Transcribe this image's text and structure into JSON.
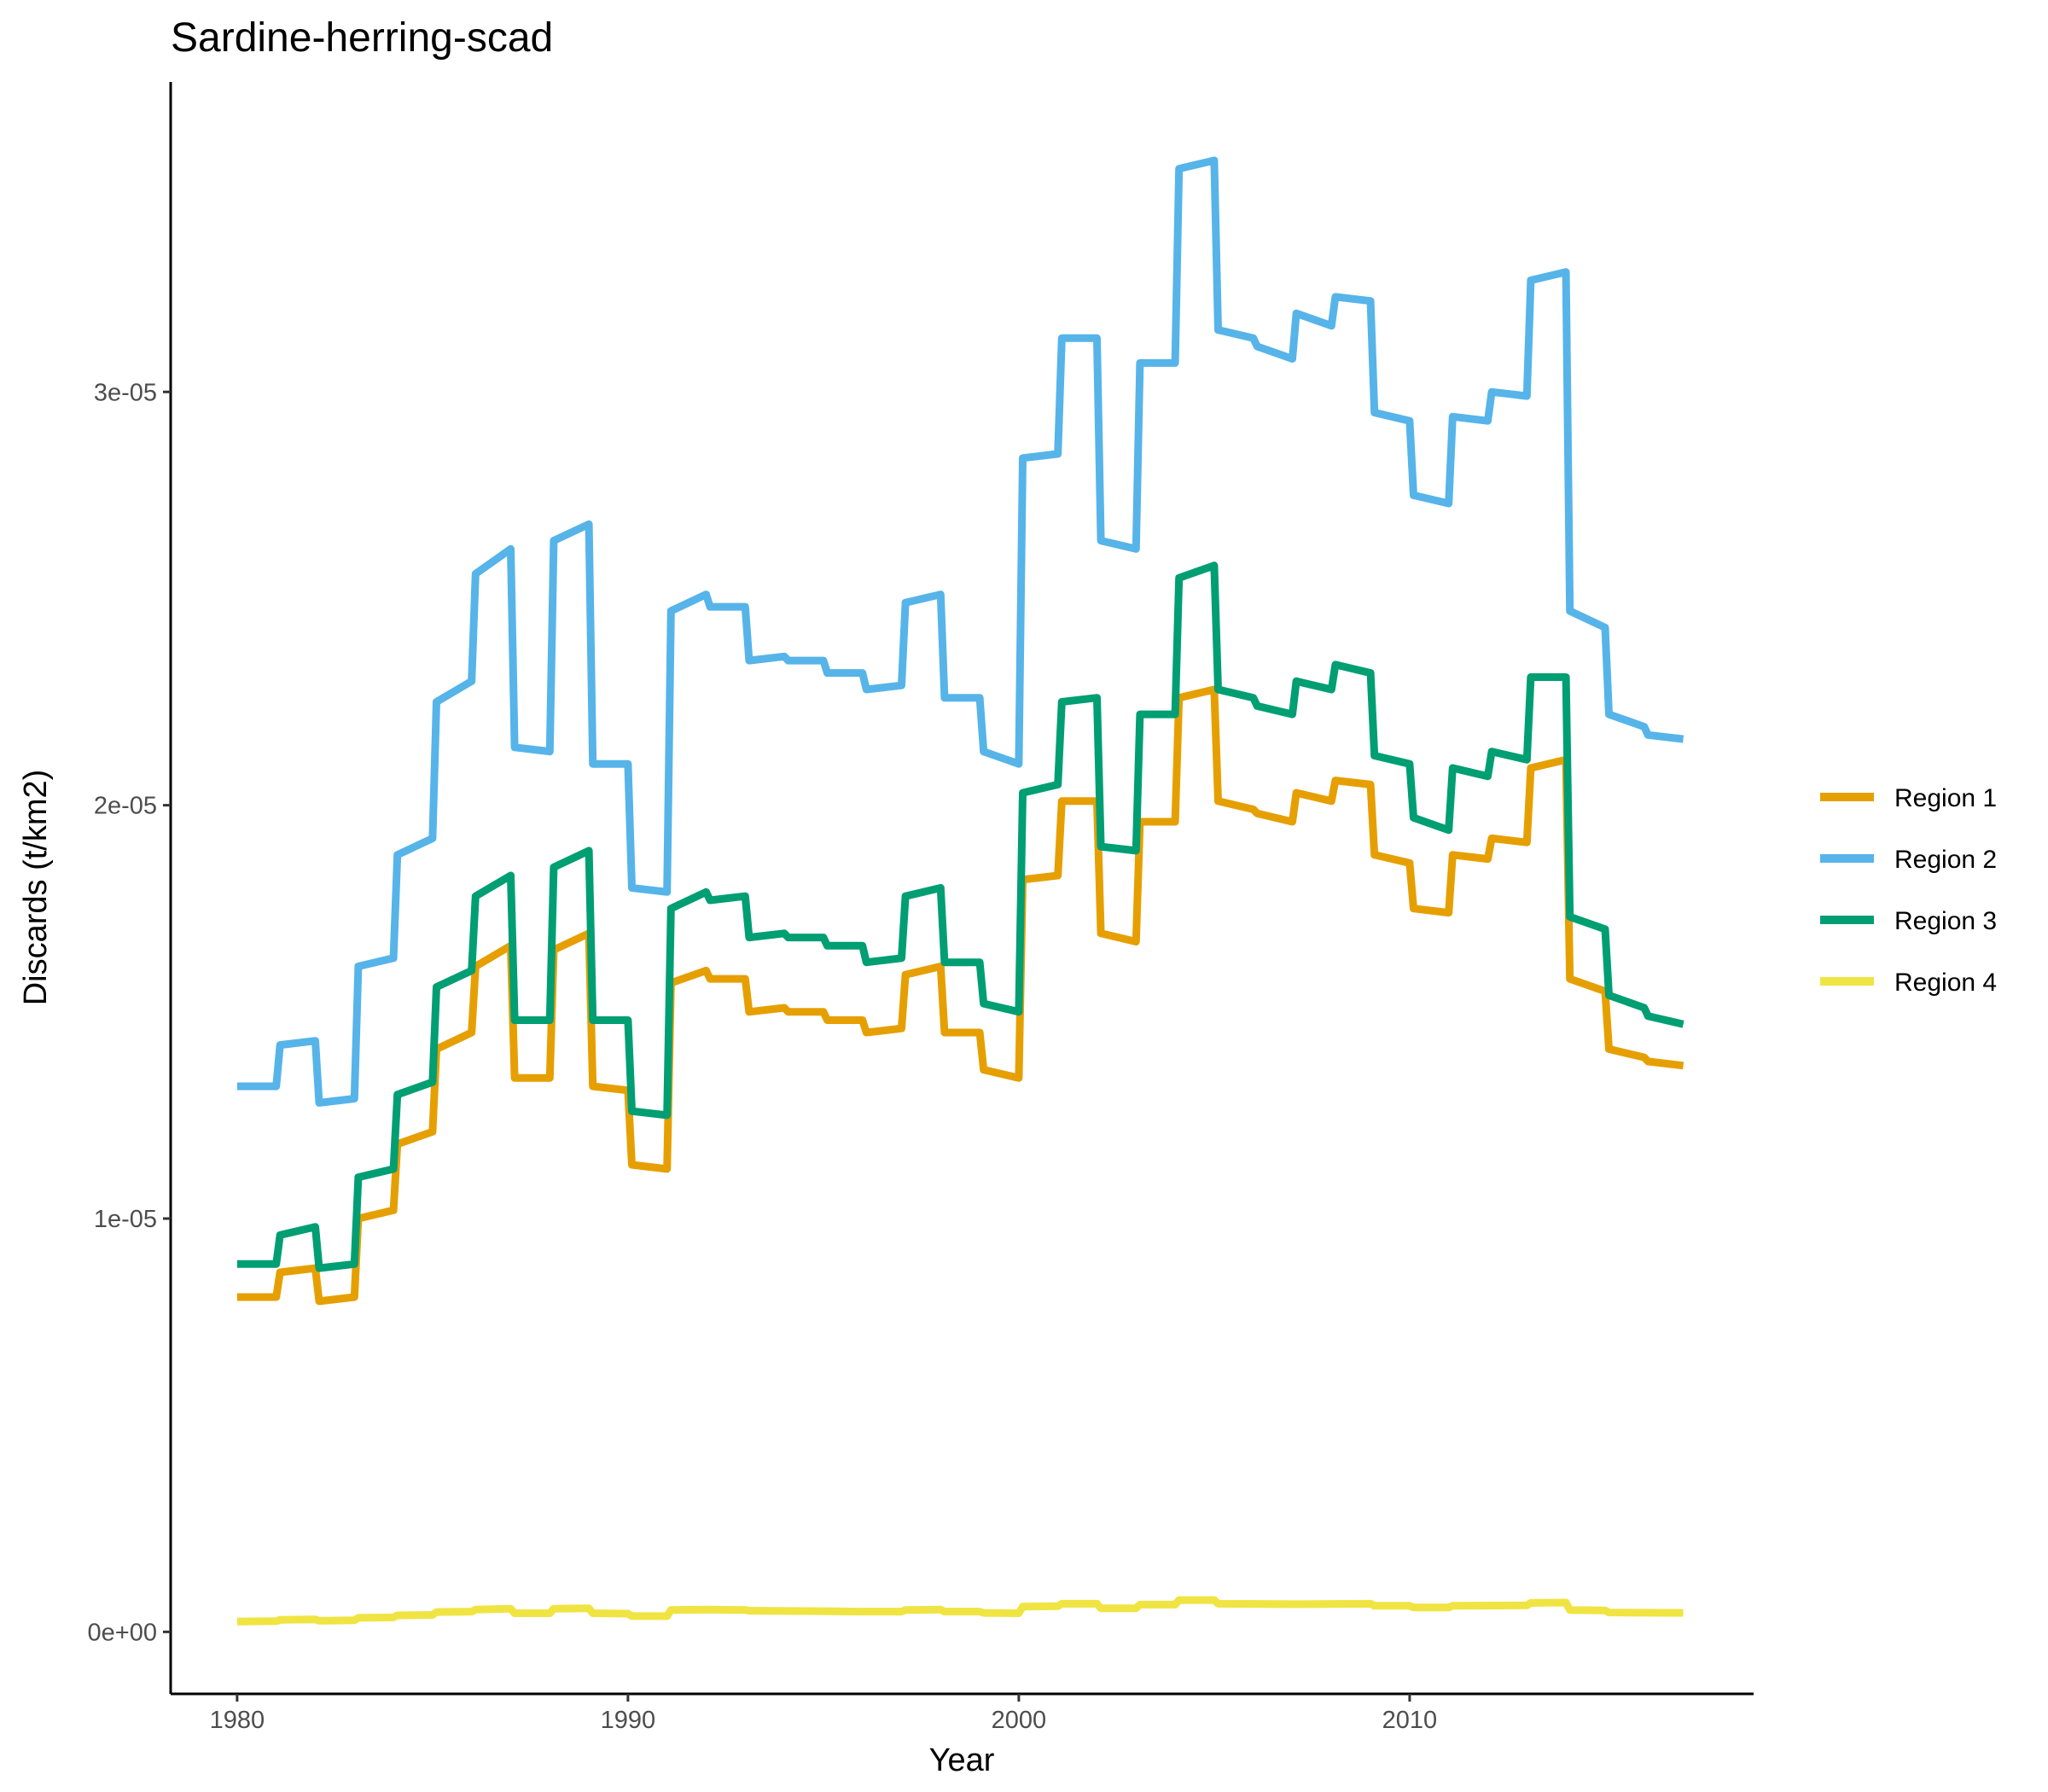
{
  "chart_data": {
    "type": "line",
    "title": "Sardine-herring-scad",
    "xlabel": "Year",
    "ylabel": "Discards (t/km2)",
    "xlim": [
      1978.3,
      2018.8
    ],
    "ylim": [
      -1.5e-06,
      3.75e-05
    ],
    "x_ticks": [
      1980,
      1990,
      2000,
      2010
    ],
    "x_tick_labels": [
      "1980",
      "1990",
      "2000",
      "2010"
    ],
    "y_ticks": [
      0,
      1e-05,
      2e-05,
      3e-05
    ],
    "y_tick_labels": [
      "0e+00",
      "1e-05",
      "2e-05",
      "3e-05"
    ],
    "grid": false,
    "legend_position": "right",
    "series": [
      {
        "name": "Region 1",
        "color": "#E69F00",
        "points": [
          [
            1980.0,
            8.1e-06
          ],
          [
            1981.0,
            8.1e-06
          ],
          [
            1981.1,
            8.7e-06
          ],
          [
            1982.0,
            8.8e-06
          ],
          [
            1982.1,
            8e-06
          ],
          [
            1983.0,
            8.1e-06
          ],
          [
            1983.1,
            1e-05
          ],
          [
            1984.0,
            1.02e-05
          ],
          [
            1984.1,
            1.18e-05
          ],
          [
            1985.0,
            1.21e-05
          ],
          [
            1985.1,
            1.41e-05
          ],
          [
            1986.0,
            1.45e-05
          ],
          [
            1986.1,
            1.61e-05
          ],
          [
            1987.0,
            1.66e-05
          ],
          [
            1987.1,
            1.34e-05
          ],
          [
            1988.0,
            1.34e-05
          ],
          [
            1988.1,
            1.65e-05
          ],
          [
            1989.0,
            1.69e-05
          ],
          [
            1989.1,
            1.32e-05
          ],
          [
            1990.0,
            1.31e-05
          ],
          [
            1990.1,
            1.13e-05
          ],
          [
            1991.0,
            1.12e-05
          ],
          [
            1991.1,
            1.57e-05
          ],
          [
            1992.0,
            1.6e-05
          ],
          [
            1992.1,
            1.58e-05
          ],
          [
            1993.0,
            1.58e-05
          ],
          [
            1993.1,
            1.5e-05
          ],
          [
            1994.0,
            1.51e-05
          ],
          [
            1994.1,
            1.5e-05
          ],
          [
            1995.0,
            1.5e-05
          ],
          [
            1995.1,
            1.48e-05
          ],
          [
            1996.0,
            1.48e-05
          ],
          [
            1996.1,
            1.45e-05
          ],
          [
            1997.0,
            1.46e-05
          ],
          [
            1997.1,
            1.59e-05
          ],
          [
            1998.0,
            1.61e-05
          ],
          [
            1998.1,
            1.45e-05
          ],
          [
            1999.0,
            1.45e-05
          ],
          [
            1999.1,
            1.36e-05
          ],
          [
            2000.0,
            1.34e-05
          ],
          [
            2000.1,
            1.82e-05
          ],
          [
            2001.0,
            1.83e-05
          ],
          [
            2001.1,
            2.01e-05
          ],
          [
            2002.0,
            2.01e-05
          ],
          [
            2002.1,
            1.69e-05
          ],
          [
            2003.0,
            1.67e-05
          ],
          [
            2003.1,
            1.96e-05
          ],
          [
            2004.0,
            1.96e-05
          ],
          [
            2004.1,
            2.26e-05
          ],
          [
            2005.0,
            2.28e-05
          ],
          [
            2005.1,
            2.01e-05
          ],
          [
            2006.0,
            1.99e-05
          ],
          [
            2006.1,
            1.98e-05
          ],
          [
            2007.0,
            1.96e-05
          ],
          [
            2007.1,
            2.03e-05
          ],
          [
            2008.0,
            2.01e-05
          ],
          [
            2008.1,
            2.06e-05
          ],
          [
            2009.0,
            2.05e-05
          ],
          [
            2009.1,
            1.88e-05
          ],
          [
            2010.0,
            1.86e-05
          ],
          [
            2010.1,
            1.75e-05
          ],
          [
            2011.0,
            1.74e-05
          ],
          [
            2011.1,
            1.88e-05
          ],
          [
            2012.0,
            1.87e-05
          ],
          [
            2012.1,
            1.92e-05
          ],
          [
            2013.0,
            1.91e-05
          ],
          [
            2013.1,
            2.09e-05
          ],
          [
            2014.0,
            2.11e-05
          ],
          [
            2014.1,
            1.58e-05
          ],
          [
            2015.0,
            1.55e-05
          ],
          [
            2015.1,
            1.41e-05
          ],
          [
            2016.0,
            1.39e-05
          ],
          [
            2016.1,
            1.38e-05
          ],
          [
            2017.0,
            1.37e-05
          ]
        ]
      },
      {
        "name": "Region 2",
        "color": "#56B4E9",
        "points": [
          [
            1980.0,
            1.32e-05
          ],
          [
            1981.0,
            1.32e-05
          ],
          [
            1981.1,
            1.42e-05
          ],
          [
            1982.0,
            1.43e-05
          ],
          [
            1982.1,
            1.28e-05
          ],
          [
            1983.0,
            1.29e-05
          ],
          [
            1983.1,
            1.61e-05
          ],
          [
            1984.0,
            1.63e-05
          ],
          [
            1984.1,
            1.88e-05
          ],
          [
            1985.0,
            1.92e-05
          ],
          [
            1985.1,
            2.25e-05
          ],
          [
            1986.0,
            2.3e-05
          ],
          [
            1986.1,
            2.56e-05
          ],
          [
            1987.0,
            2.62e-05
          ],
          [
            1987.1,
            2.14e-05
          ],
          [
            1988.0,
            2.13e-05
          ],
          [
            1988.1,
            2.64e-05
          ],
          [
            1989.0,
            2.68e-05
          ],
          [
            1989.1,
            2.1e-05
          ],
          [
            1990.0,
            2.1e-05
          ],
          [
            1990.1,
            1.8e-05
          ],
          [
            1991.0,
            1.79e-05
          ],
          [
            1991.1,
            2.47e-05
          ],
          [
            1992.0,
            2.51e-05
          ],
          [
            1992.1,
            2.48e-05
          ],
          [
            1993.0,
            2.48e-05
          ],
          [
            1993.1,
            2.35e-05
          ],
          [
            1994.0,
            2.36e-05
          ],
          [
            1994.1,
            2.35e-05
          ],
          [
            1995.0,
            2.35e-05
          ],
          [
            1995.1,
            2.32e-05
          ],
          [
            1996.0,
            2.32e-05
          ],
          [
            1996.1,
            2.28e-05
          ],
          [
            1997.0,
            2.29e-05
          ],
          [
            1997.1,
            2.49e-05
          ],
          [
            1998.0,
            2.51e-05
          ],
          [
            1998.1,
            2.26e-05
          ],
          [
            1999.0,
            2.26e-05
          ],
          [
            1999.1,
            2.13e-05
          ],
          [
            2000.0,
            2.1e-05
          ],
          [
            2000.1,
            2.84e-05
          ],
          [
            2001.0,
            2.85e-05
          ],
          [
            2001.1,
            3.13e-05
          ],
          [
            2002.0,
            3.13e-05
          ],
          [
            2002.1,
            2.64e-05
          ],
          [
            2003.0,
            2.62e-05
          ],
          [
            2003.1,
            3.07e-05
          ],
          [
            2004.0,
            3.07e-05
          ],
          [
            2004.1,
            3.54e-05
          ],
          [
            2005.0,
            3.56e-05
          ],
          [
            2005.1,
            3.15e-05
          ],
          [
            2006.0,
            3.13e-05
          ],
          [
            2006.1,
            3.11e-05
          ],
          [
            2007.0,
            3.08e-05
          ],
          [
            2007.1,
            3.19e-05
          ],
          [
            2008.0,
            3.16e-05
          ],
          [
            2008.1,
            3.23e-05
          ],
          [
            2009.0,
            3.22e-05
          ],
          [
            2009.1,
            2.95e-05
          ],
          [
            2010.0,
            2.93e-05
          ],
          [
            2010.1,
            2.75e-05
          ],
          [
            2011.0,
            2.73e-05
          ],
          [
            2011.1,
            2.94e-05
          ],
          [
            2012.0,
            2.93e-05
          ],
          [
            2012.1,
            3e-05
          ],
          [
            2013.0,
            2.99e-05
          ],
          [
            2013.1,
            3.27e-05
          ],
          [
            2014.0,
            3.29e-05
          ],
          [
            2014.1,
            2.47e-05
          ],
          [
            2015.0,
            2.43e-05
          ],
          [
            2015.1,
            2.22e-05
          ],
          [
            2016.0,
            2.19e-05
          ],
          [
            2016.1,
            2.17e-05
          ],
          [
            2017.0,
            2.16e-05
          ]
        ]
      },
      {
        "name": "Region 3",
        "color": "#009E73",
        "points": [
          [
            1980.0,
            8.9e-06
          ],
          [
            1981.0,
            8.9e-06
          ],
          [
            1981.1,
            9.6e-06
          ],
          [
            1982.0,
            9.8e-06
          ],
          [
            1982.1,
            8.8e-06
          ],
          [
            1983.0,
            8.9e-06
          ],
          [
            1983.1,
            1.1e-05
          ],
          [
            1984.0,
            1.12e-05
          ],
          [
            1984.1,
            1.3e-05
          ],
          [
            1985.0,
            1.33e-05
          ],
          [
            1985.1,
            1.56e-05
          ],
          [
            1986.0,
            1.6e-05
          ],
          [
            1986.1,
            1.78e-05
          ],
          [
            1987.0,
            1.83e-05
          ],
          [
            1987.1,
            1.48e-05
          ],
          [
            1988.0,
            1.48e-05
          ],
          [
            1988.1,
            1.85e-05
          ],
          [
            1989.0,
            1.89e-05
          ],
          [
            1989.1,
            1.48e-05
          ],
          [
            1990.0,
            1.48e-05
          ],
          [
            1990.1,
            1.26e-05
          ],
          [
            1991.0,
            1.25e-05
          ],
          [
            1991.1,
            1.75e-05
          ],
          [
            1992.0,
            1.79e-05
          ],
          [
            1992.1,
            1.77e-05
          ],
          [
            1993.0,
            1.78e-05
          ],
          [
            1993.1,
            1.68e-05
          ],
          [
            1994.0,
            1.69e-05
          ],
          [
            1994.1,
            1.68e-05
          ],
          [
            1995.0,
            1.68e-05
          ],
          [
            1995.1,
            1.66e-05
          ],
          [
            1996.0,
            1.66e-05
          ],
          [
            1996.1,
            1.62e-05
          ],
          [
            1997.0,
            1.63e-05
          ],
          [
            1997.1,
            1.78e-05
          ],
          [
            1998.0,
            1.8e-05
          ],
          [
            1998.1,
            1.62e-05
          ],
          [
            1999.0,
            1.62e-05
          ],
          [
            1999.1,
            1.52e-05
          ],
          [
            2000.0,
            1.5e-05
          ],
          [
            2000.1,
            2.03e-05
          ],
          [
            2001.0,
            2.05e-05
          ],
          [
            2001.1,
            2.25e-05
          ],
          [
            2002.0,
            2.26e-05
          ],
          [
            2002.1,
            1.9e-05
          ],
          [
            2003.0,
            1.89e-05
          ],
          [
            2003.1,
            2.22e-05
          ],
          [
            2004.0,
            2.22e-05
          ],
          [
            2004.1,
            2.55e-05
          ],
          [
            2005.0,
            2.58e-05
          ],
          [
            2005.1,
            2.28e-05
          ],
          [
            2006.0,
            2.26e-05
          ],
          [
            2006.1,
            2.24e-05
          ],
          [
            2007.0,
            2.22e-05
          ],
          [
            2007.1,
            2.3e-05
          ],
          [
            2008.0,
            2.28e-05
          ],
          [
            2008.1,
            2.34e-05
          ],
          [
            2009.0,
            2.32e-05
          ],
          [
            2009.1,
            2.12e-05
          ],
          [
            2010.0,
            2.1e-05
          ],
          [
            2010.1,
            1.97e-05
          ],
          [
            2011.0,
            1.94e-05
          ],
          [
            2011.1,
            2.09e-05
          ],
          [
            2012.0,
            2.07e-05
          ],
          [
            2012.1,
            2.13e-05
          ],
          [
            2013.0,
            2.11e-05
          ],
          [
            2013.1,
            2.31e-05
          ],
          [
            2014.0,
            2.31e-05
          ],
          [
            2014.1,
            1.73e-05
          ],
          [
            2015.0,
            1.7e-05
          ],
          [
            2015.1,
            1.54e-05
          ],
          [
            2016.0,
            1.51e-05
          ],
          [
            2016.1,
            1.49e-05
          ],
          [
            2017.0,
            1.47e-05
          ]
        ]
      },
      {
        "name": "Region 4",
        "color": "#F0E442",
        "points": [
          [
            1980.0,
            2.5e-07
          ],
          [
            1981.0,
            2.6e-07
          ],
          [
            1981.1,
            2.9e-07
          ],
          [
            1982.0,
            3e-07
          ],
          [
            1982.1,
            2.7e-07
          ],
          [
            1983.0,
            2.8e-07
          ],
          [
            1983.1,
            3.4e-07
          ],
          [
            1984.0,
            3.5e-07
          ],
          [
            1984.1,
            4e-07
          ],
          [
            1985.0,
            4.1e-07
          ],
          [
            1985.1,
            4.8e-07
          ],
          [
            1986.0,
            4.9e-07
          ],
          [
            1986.1,
            5.4e-07
          ],
          [
            1987.0,
            5.6e-07
          ],
          [
            1987.1,
            4.5e-07
          ],
          [
            1988.0,
            4.5e-07
          ],
          [
            1988.1,
            5.6e-07
          ],
          [
            1989.0,
            5.7e-07
          ],
          [
            1989.1,
            4.5e-07
          ],
          [
            1990.0,
            4.4e-07
          ],
          [
            1990.1,
            3.8e-07
          ],
          [
            1991.0,
            3.8e-07
          ],
          [
            1991.1,
            5.3e-07
          ],
          [
            1992.0,
            5.4e-07
          ],
          [
            1993.0,
            5.3e-07
          ],
          [
            1993.1,
            5.1e-07
          ],
          [
            1995.0,
            5e-07
          ],
          [
            1996.0,
            4.9e-07
          ],
          [
            1997.0,
            4.9e-07
          ],
          [
            1997.1,
            5.3e-07
          ],
          [
            1998.0,
            5.4e-07
          ],
          [
            1998.1,
            4.9e-07
          ],
          [
            1999.0,
            4.9e-07
          ],
          [
            1999.1,
            4.6e-07
          ],
          [
            2000.0,
            4.5e-07
          ],
          [
            2000.1,
            6.1e-07
          ],
          [
            2001.0,
            6.2e-07
          ],
          [
            2001.1,
            6.8e-07
          ],
          [
            2002.0,
            6.8e-07
          ],
          [
            2002.1,
            5.7e-07
          ],
          [
            2003.0,
            5.7e-07
          ],
          [
            2003.1,
            6.6e-07
          ],
          [
            2004.0,
            6.6e-07
          ],
          [
            2004.1,
            7.7e-07
          ],
          [
            2005.0,
            7.7e-07
          ],
          [
            2005.1,
            6.8e-07
          ],
          [
            2007.0,
            6.7e-07
          ],
          [
            2009.0,
            6.8e-07
          ],
          [
            2009.1,
            6.3e-07
          ],
          [
            2010.0,
            6.3e-07
          ],
          [
            2010.1,
            5.9e-07
          ],
          [
            2011.0,
            5.9e-07
          ],
          [
            2011.1,
            6.3e-07
          ],
          [
            2013.0,
            6.4e-07
          ],
          [
            2013.1,
            7e-07
          ],
          [
            2014.0,
            7.1e-07
          ],
          [
            2014.1,
            5.3e-07
          ],
          [
            2015.0,
            5.2e-07
          ],
          [
            2015.1,
            4.7e-07
          ],
          [
            2017.0,
            4.6e-07
          ]
        ]
      }
    ]
  }
}
